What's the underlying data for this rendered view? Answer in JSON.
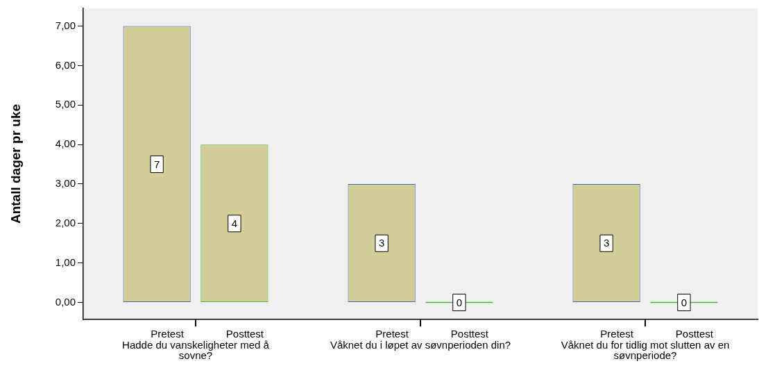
{
  "chart_data": {
    "type": "bar",
    "ylabel": "Antall dager pr uke",
    "categories": [
      "Hadde du vanskeligheter med å sovne?",
      "Våknet du i løpet av søvnperioden din?",
      "Våknet du for tidlig mot slutten av en søvnperiode?"
    ],
    "series": [
      {
        "name": "Pretest",
        "color": "#d3ce97",
        "values": [
          7,
          3,
          3
        ]
      },
      {
        "name": "Posttest",
        "colors": [
          "#d3ce97",
          "#3dbb3d",
          "#3dbb3d"
        ],
        "values": [
          4,
          0,
          0
        ]
      }
    ],
    "ylim": [
      -0.43,
      7.45
    ],
    "yticks": [
      {
        "value": 0,
        "label": "0,00"
      },
      {
        "value": 1,
        "label": "1,00"
      },
      {
        "value": 2,
        "label": "2,00"
      },
      {
        "value": 3,
        "label": "3,00"
      },
      {
        "value": 4,
        "label": "4,00"
      },
      {
        "value": 5,
        "label": "5,00"
      },
      {
        "value": 6,
        "label": "6,00"
      },
      {
        "value": 7,
        "label": "7,00"
      }
    ],
    "data_labels": true,
    "grid": false,
    "legend": false
  }
}
